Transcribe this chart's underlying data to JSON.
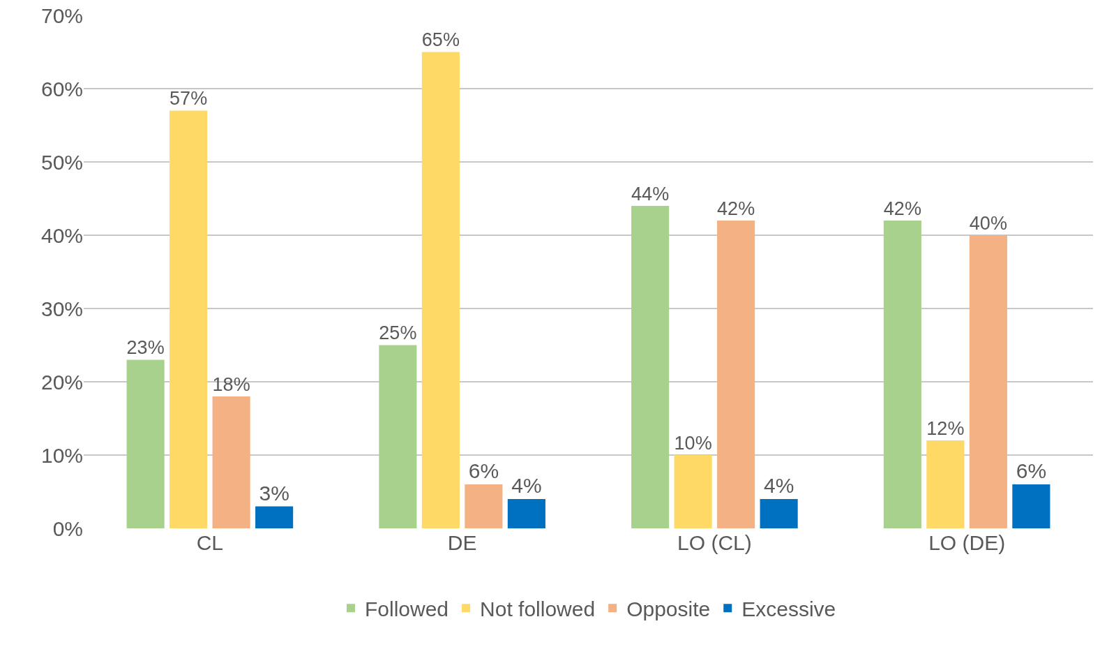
{
  "chart_data": {
    "type": "bar",
    "categories": [
      "CL",
      "DE",
      "LO (CL)",
      "LO (DE)"
    ],
    "series": [
      {
        "name": "Followed",
        "color": "#a9d18e",
        "values": [
          23,
          25,
          44,
          42
        ],
        "value_labels": [
          "23%",
          "25%",
          "44%",
          "42%"
        ]
      },
      {
        "name": "Not followed",
        "color": "#ffd966",
        "values": [
          57,
          65,
          10,
          12
        ],
        "value_labels": [
          "57%",
          "65%",
          "10%",
          "12%"
        ]
      },
      {
        "name": "Opposite",
        "color": "#f4b183",
        "values": [
          18,
          6,
          42,
          40
        ],
        "value_labels": [
          "18%",
          "6%",
          "42%",
          "40%"
        ]
      },
      {
        "name": "Excessive",
        "color": "#0070c0",
        "values": [
          3,
          4,
          4,
          6
        ],
        "value_labels": [
          "3%",
          "4%",
          "4%",
          "6%"
        ]
      }
    ],
    "ylim": [
      0,
      70
    ],
    "yticks": [
      {
        "value": 0,
        "label": "0%"
      },
      {
        "value": 10,
        "label": "10%"
      },
      {
        "value": 20,
        "label": "20%"
      },
      {
        "value": 30,
        "label": "30%"
      },
      {
        "value": 40,
        "label": "40%"
      },
      {
        "value": 50,
        "label": "50%"
      },
      {
        "value": 60,
        "label": "60%"
      },
      {
        "value": 70,
        "label": "70%"
      }
    ],
    "grid": "y",
    "legend": "bottom"
  }
}
